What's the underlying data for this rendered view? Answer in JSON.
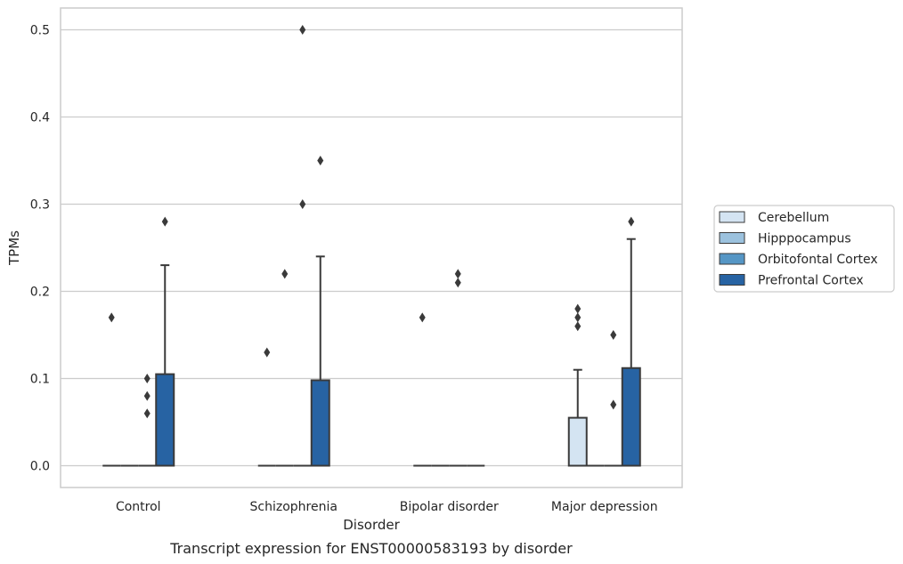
{
  "chart_data": {
    "type": "box",
    "title": "",
    "caption": "Transcript expression for ENST00000583193 by disorder",
    "xlabel": "Disorder",
    "ylabel": "TPMs",
    "categories": [
      "Control",
      "Schizophrenia",
      "Bipolar disorder",
      "Major depression"
    ],
    "ylim": [
      -0.025,
      0.525
    ],
    "yticks": [
      "0.0",
      "0.1",
      "0.2",
      "0.3",
      "0.4",
      "0.5"
    ],
    "grid": "horizontal",
    "legend_position": "right",
    "series": [
      {
        "name": "Cerebellum",
        "color": "#d4e4f2",
        "boxes": [
          {
            "q1": 0,
            "median": 0,
            "q3": 0,
            "whisker_low": 0,
            "whisker_high": 0,
            "outliers": [
              0.17
            ]
          },
          {
            "q1": 0,
            "median": 0,
            "q3": 0,
            "whisker_low": 0,
            "whisker_high": 0,
            "outliers": [
              0.13
            ]
          },
          {
            "q1": 0,
            "median": 0,
            "q3": 0,
            "whisker_low": 0,
            "whisker_high": 0,
            "outliers": [
              0.17
            ]
          },
          {
            "q1": 0,
            "median": 0,
            "q3": 0.055,
            "whisker_low": 0,
            "whisker_high": 0.11,
            "outliers": [
              0.16,
              0.17,
              0.18
            ]
          }
        ]
      },
      {
        "name": "Hipppocampus",
        "color": "#9cc2de",
        "boxes": [
          {
            "q1": 0,
            "median": 0,
            "q3": 0,
            "whisker_low": 0,
            "whisker_high": 0,
            "outliers": []
          },
          {
            "q1": 0,
            "median": 0,
            "q3": 0,
            "whisker_low": 0,
            "whisker_high": 0,
            "outliers": [
              0.22
            ]
          },
          {
            "q1": 0,
            "median": 0,
            "q3": 0,
            "whisker_low": 0,
            "whisker_high": 0,
            "outliers": []
          },
          {
            "q1": 0,
            "median": 0,
            "q3": 0,
            "whisker_low": 0,
            "whisker_high": 0,
            "outliers": []
          }
        ]
      },
      {
        "name": "Orbitofontal Cortex",
        "color": "#5596c5",
        "boxes": [
          {
            "q1": 0,
            "median": 0,
            "q3": 0,
            "whisker_low": 0,
            "whisker_high": 0,
            "outliers": [
              0.06,
              0.08,
              0.1
            ]
          },
          {
            "q1": 0,
            "median": 0,
            "q3": 0,
            "whisker_low": 0,
            "whisker_high": 0,
            "outliers": [
              0.3,
              0.5
            ]
          },
          {
            "q1": 0,
            "median": 0,
            "q3": 0,
            "whisker_low": 0,
            "whisker_high": 0,
            "outliers": [
              0.21,
              0.22
            ]
          },
          {
            "q1": 0,
            "median": 0,
            "q3": 0,
            "whisker_low": 0,
            "whisker_high": 0,
            "outliers": [
              0.07,
              0.15
            ]
          }
        ]
      },
      {
        "name": "Prefrontal Cortex",
        "color": "#2763a3",
        "boxes": [
          {
            "q1": 0,
            "median": 0,
            "q3": 0.105,
            "whisker_low": 0,
            "whisker_high": 0.23,
            "outliers": [
              0.28
            ]
          },
          {
            "q1": 0,
            "median": 0,
            "q3": 0.098,
            "whisker_low": 0,
            "whisker_high": 0.24,
            "outliers": [
              0.35
            ]
          },
          {
            "q1": 0,
            "median": 0,
            "q3": 0,
            "whisker_low": 0,
            "whisker_high": 0,
            "outliers": []
          },
          {
            "q1": 0,
            "median": 0,
            "q3": 0.112,
            "whisker_low": 0,
            "whisker_high": 0.26,
            "outliers": [
              0.28
            ]
          }
        ]
      }
    ]
  }
}
